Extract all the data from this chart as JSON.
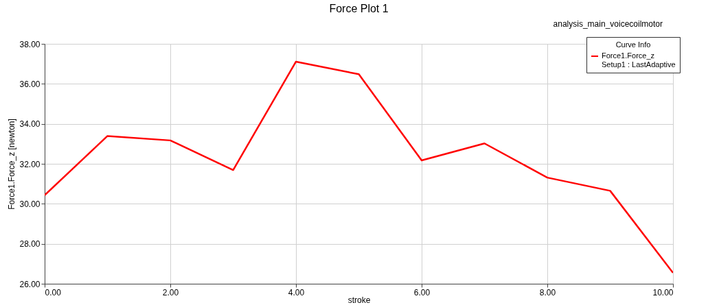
{
  "chart_data": {
    "type": "line",
    "title": "Force Plot 1",
    "xlabel": "stroke",
    "ylabel": "Force1.Force_z [newton]",
    "legend_title": "Curve Info",
    "annotations": [
      "analysis_main_voicecoilmotor"
    ],
    "x": [
      0,
      1,
      2,
      3,
      4,
      5,
      6,
      7,
      8,
      9,
      10
    ],
    "series": [
      {
        "name": "Force1.Force_z\nSetup1 : LastAdaptive",
        "color": "#ff0000",
        "values": [
          30.43,
          33.39,
          33.17,
          31.69,
          37.11,
          36.48,
          32.17,
          33.02,
          31.31,
          30.65,
          26.55
        ]
      }
    ],
    "xlim": [
      0,
      10
    ],
    "xticks": [
      {
        "value": 0,
        "label": "0.00"
      },
      {
        "value": 2,
        "label": "2.00"
      },
      {
        "value": 4,
        "label": "4.00"
      },
      {
        "value": 6,
        "label": "6.00"
      },
      {
        "value": 8,
        "label": "8.00"
      },
      {
        "value": 10,
        "label": "10.00"
      }
    ],
    "ylim": [
      26,
      38
    ],
    "yticks": [
      {
        "value": 26,
        "label": "26.00"
      },
      {
        "value": 28,
        "label": "28.00"
      },
      {
        "value": 30,
        "label": "30.00"
      },
      {
        "value": 32,
        "label": "32.00"
      },
      {
        "value": 34,
        "label": "34.00"
      },
      {
        "value": 36,
        "label": "36.00"
      },
      {
        "value": 38,
        "label": "38.00"
      }
    ],
    "grid": true,
    "legend": "top right",
    "marker": "none",
    "line_style": "solid"
  }
}
